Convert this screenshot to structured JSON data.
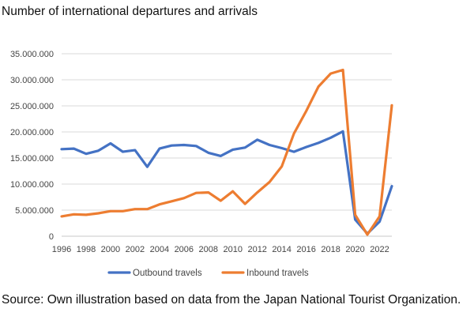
{
  "title": "Number of international departures and arrivals",
  "source": "Source: Own illustration based on data from the Japan National Tourist Organization.",
  "chart_data": {
    "type": "line",
    "title": "",
    "xlabel": "",
    "ylabel": "",
    "x": [
      1996,
      1997,
      1998,
      1999,
      2000,
      2001,
      2002,
      2003,
      2004,
      2005,
      2006,
      2007,
      2008,
      2009,
      2010,
      2011,
      2012,
      2013,
      2014,
      2015,
      2016,
      2017,
      2018,
      2019,
      2020,
      2021,
      2022,
      2023
    ],
    "x_tick_labels": [
      "1996",
      "1998",
      "2000",
      "2002",
      "2004",
      "2006",
      "2008",
      "2010",
      "2012",
      "2014",
      "2016",
      "2018",
      "2020",
      "2022"
    ],
    "y_tick_labels": [
      "0",
      "5.000.000",
      "10.000.000",
      "15.000.000",
      "20.000.000",
      "25.000.000",
      "30.000.000",
      "35.000.000"
    ],
    "ylim": [
      0,
      35000000
    ],
    "grid": true,
    "legend_position": "bottom",
    "series": [
      {
        "name": "Outbound travels",
        "color": "#4472c4",
        "values": [
          16700000,
          16800000,
          15800000,
          16400000,
          17800000,
          16200000,
          16500000,
          13300000,
          16800000,
          17400000,
          17500000,
          17300000,
          16000000,
          15400000,
          16600000,
          17000000,
          18500000,
          17500000,
          16900000,
          16200000,
          17100000,
          17900000,
          18900000,
          20100000,
          3200000,
          500000,
          2800000,
          9600000
        ]
      },
      {
        "name": "Inbound travels",
        "color": "#ed7d31",
        "values": [
          3800000,
          4200000,
          4100000,
          4400000,
          4800000,
          4800000,
          5200000,
          5200000,
          6100000,
          6700000,
          7300000,
          8300000,
          8400000,
          6800000,
          8600000,
          6200000,
          8400000,
          10400000,
          13400000,
          19700000,
          24000000,
          28700000,
          31200000,
          31900000,
          4100000,
          300000,
          3800000,
          25100000
        ]
      }
    ]
  }
}
